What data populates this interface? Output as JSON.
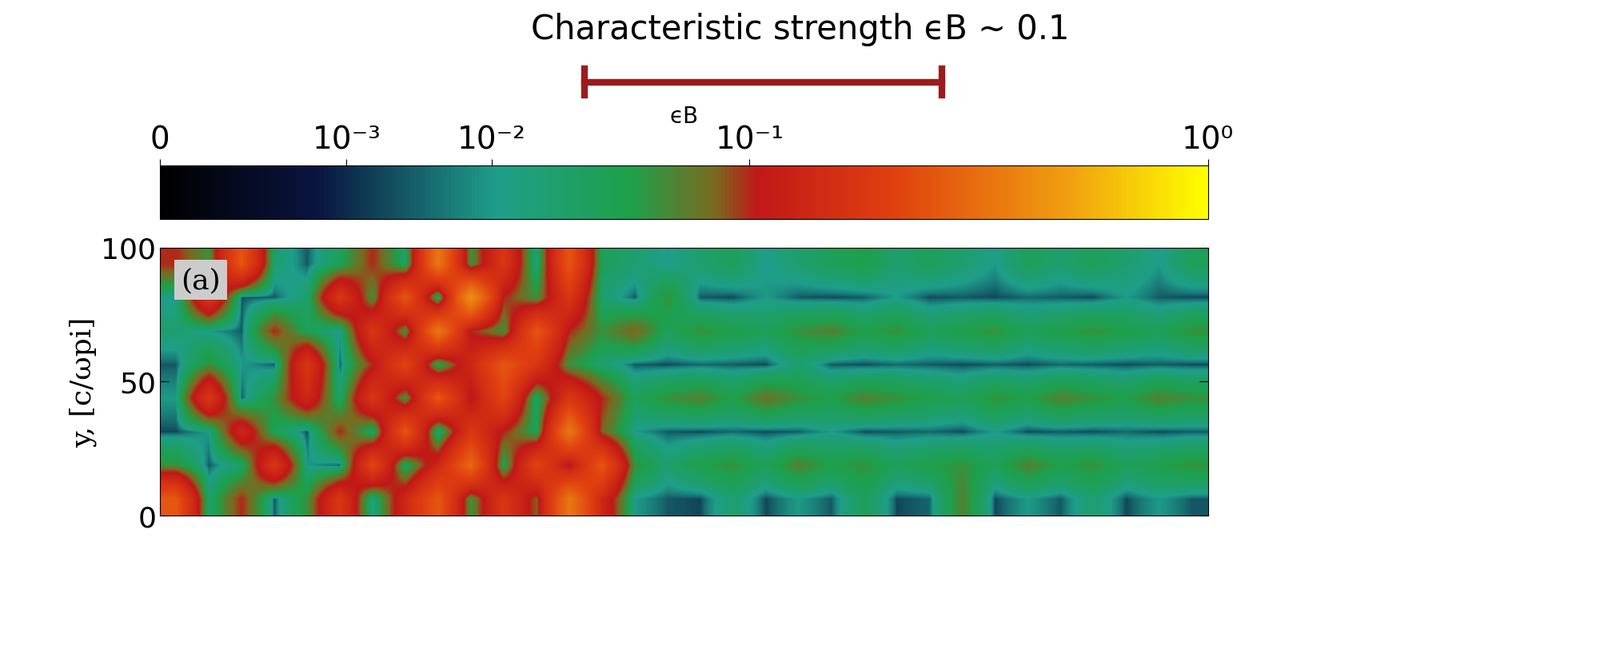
{
  "chart_data": {
    "type": "heatmap",
    "title": "Characteristic strength ϵB ∼ 0.1",
    "ylabel": "y, [c/ωpi]",
    "panel_label": "(a)",
    "xlim": [
      0,
      390
    ],
    "ylim": [
      0,
      100
    ],
    "yticks": [
      0,
      50,
      100
    ],
    "tick_labels": "y",
    "cells": [
      [
        0.3,
        0.02,
        0.1,
        0.003,
        0.05,
        0.2,
        0.01,
        0.15,
        0.3,
        0.05,
        0.2,
        0.08,
        0.4,
        0.15,
        0.01,
        0.003,
        0.002,
        0.02,
        0.002,
        0.01,
        0.003,
        0.03,
        0.002,
        0.004,
        0.06,
        0.002,
        0.01,
        0.003,
        0.02,
        0.002,
        0.01,
        0.003
      ],
      [
        0.05,
        0.003,
        0.02,
        0.2,
        0.01,
        0.003,
        0.25,
        0.02,
        0.15,
        0.35,
        0.03,
        0.25,
        0.1,
        0.3,
        0.05,
        0.02,
        0.04,
        0.05,
        0.03,
        0.06,
        0.04,
        0.05,
        0.03,
        0.04,
        0.05,
        0.03,
        0.06,
        0.04,
        0.05,
        0.03,
        0.04,
        0.05
      ],
      [
        0.002,
        0.01,
        0.15,
        0.03,
        0.002,
        0.1,
        0.02,
        0.3,
        0.01,
        0.2,
        0.1,
        0.03,
        0.4,
        0.08,
        0.01,
        0.003,
        0.002,
        0.004,
        0.002,
        0.003,
        0.01,
        0.002,
        0.003,
        0.004,
        0.002,
        0.01,
        0.002,
        0.003,
        0.002,
        0.004,
        0.002,
        0.003
      ],
      [
        0.01,
        0.2,
        0.003,
        0.05,
        0.15,
        0.02,
        0.2,
        0.05,
        0.3,
        0.1,
        0.25,
        0.02,
        0.2,
        0.1,
        0.03,
        0.05,
        0.06,
        0.04,
        0.07,
        0.05,
        0.04,
        0.06,
        0.05,
        0.04,
        0.03,
        0.05,
        0.04,
        0.06,
        0.05,
        0.04,
        0.06,
        0.05
      ],
      [
        0.003,
        0.05,
        0.01,
        0.003,
        0.2,
        0.003,
        0.1,
        0.25,
        0.03,
        0.15,
        0.3,
        0.2,
        0.05,
        0.02,
        0.003,
        0.002,
        0.004,
        0.003,
        0.002,
        0.02,
        0.003,
        0.002,
        0.004,
        0.003,
        0.002,
        0.003,
        0.002,
        0.004,
        0.003,
        0.002,
        0.003,
        0.002
      ],
      [
        0.02,
        0.01,
        0.003,
        0.1,
        0.03,
        0.01,
        0.2,
        0.05,
        0.4,
        0.1,
        0.05,
        0.3,
        0.1,
        0.05,
        0.08,
        0.03,
        0.05,
        0.04,
        0.03,
        0.05,
        0.06,
        0.04,
        0.05,
        0.03,
        0.04,
        0.05,
        0.03,
        0.04,
        0.05,
        0.04,
        0.03,
        0.05
      ],
      [
        0.01,
        0.2,
        0.003,
        0.003,
        0.02,
        0.2,
        0.05,
        0.3,
        0.02,
        0.5,
        0.1,
        0.05,
        0.2,
        0.02,
        0.003,
        0.05,
        0.003,
        0.002,
        0.01,
        0.003,
        0.002,
        0.003,
        0.01,
        0.002,
        0.003,
        0.002,
        0.004,
        0.003,
        0.002,
        0.01,
        0.003,
        0.002
      ],
      [
        0.1,
        0.05,
        0.3,
        0.02,
        0.003,
        0.03,
        0.1,
        0.02,
        0.4,
        0.05,
        0.2,
        0.01,
        0.3,
        0.03,
        0.02,
        0.01,
        0.02,
        0.03,
        0.01,
        0.02,
        0.03,
        0.04,
        0.02,
        0.03,
        0.02,
        0.01,
        0.03,
        0.02,
        0.03,
        0.02,
        0.01,
        0.03
      ]
    ],
    "colorbar": {
      "label": "ϵB",
      "range": [
        0,
        1
      ],
      "power": 0.25,
      "ticks": [
        0,
        {
          "value": 0.001,
          "label": "10⁻³"
        },
        {
          "value": 0.01,
          "label": "10⁻²"
        },
        {
          "value": 0.1,
          "label": "10⁻¹"
        },
        {
          "value": 1,
          "label": "10⁰"
        }
      ]
    },
    "highlight_range": [
      0.027,
      0.31
    ]
  }
}
